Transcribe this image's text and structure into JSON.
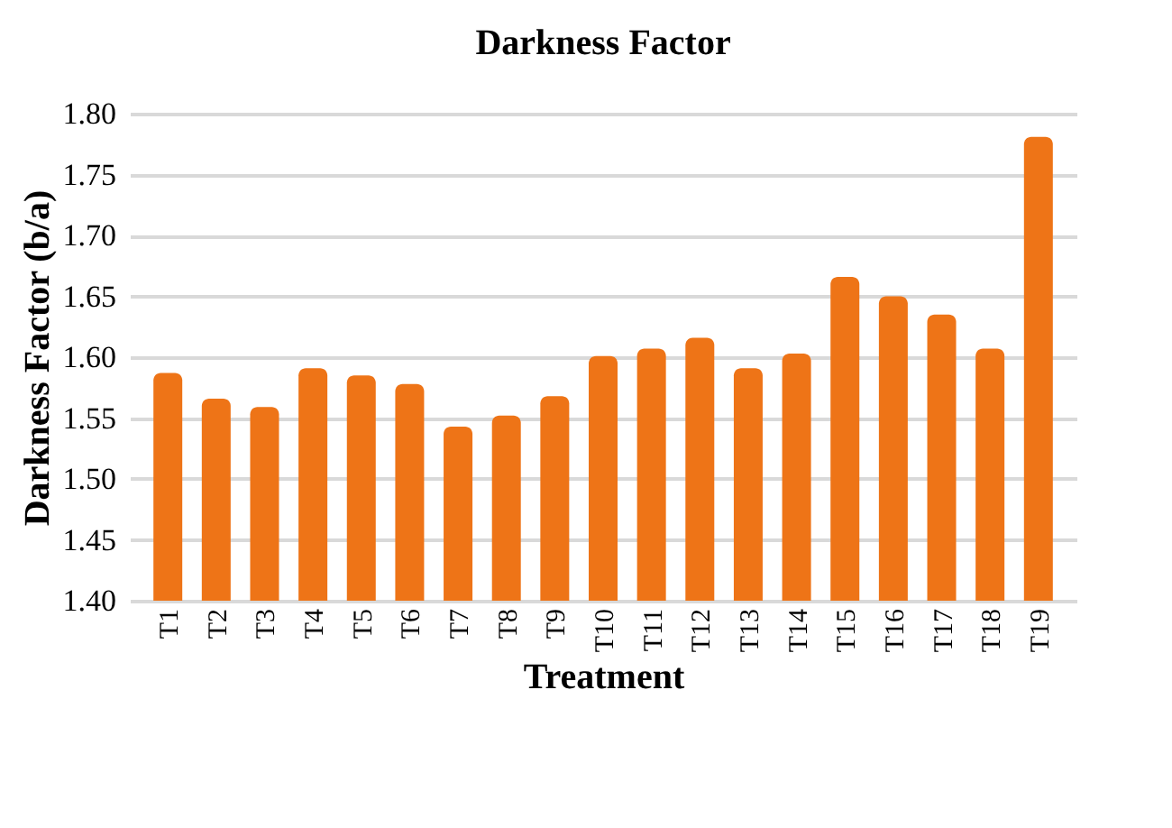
{
  "chart_data": {
    "type": "bar",
    "title": "Darkness Factor",
    "xlabel": "Treatment",
    "ylabel": "Darkness Factor (b/a)",
    "categories": [
      "T1",
      "T2",
      "T3",
      "T4",
      "T5",
      "T6",
      "T7",
      "T8",
      "T9",
      "T10",
      "T11",
      "T12",
      "T13",
      "T14",
      "T15",
      "T16",
      "T17",
      "T18",
      "T19"
    ],
    "values": [
      1.587,
      1.566,
      1.559,
      1.591,
      1.585,
      1.578,
      1.543,
      1.552,
      1.568,
      1.601,
      1.607,
      1.616,
      1.591,
      1.603,
      1.666,
      1.65,
      1.635,
      1.607,
      1.781
    ],
    "color": "#ee7417",
    "ylim": [
      1.4,
      1.8
    ],
    "yticks": [
      {
        "value": 1.4,
        "label": "1.40"
      },
      {
        "value": 1.45,
        "label": "1.45"
      },
      {
        "value": 1.5,
        "label": "1.50"
      },
      {
        "value": 1.55,
        "label": "1.55"
      },
      {
        "value": 1.6,
        "label": "1.60"
      },
      {
        "value": 1.65,
        "label": "1.65"
      },
      {
        "value": 1.7,
        "label": "1.70"
      },
      {
        "value": 1.75,
        "label": "1.75"
      },
      {
        "value": 1.8,
        "label": "1.80"
      }
    ],
    "grid": "y"
  }
}
